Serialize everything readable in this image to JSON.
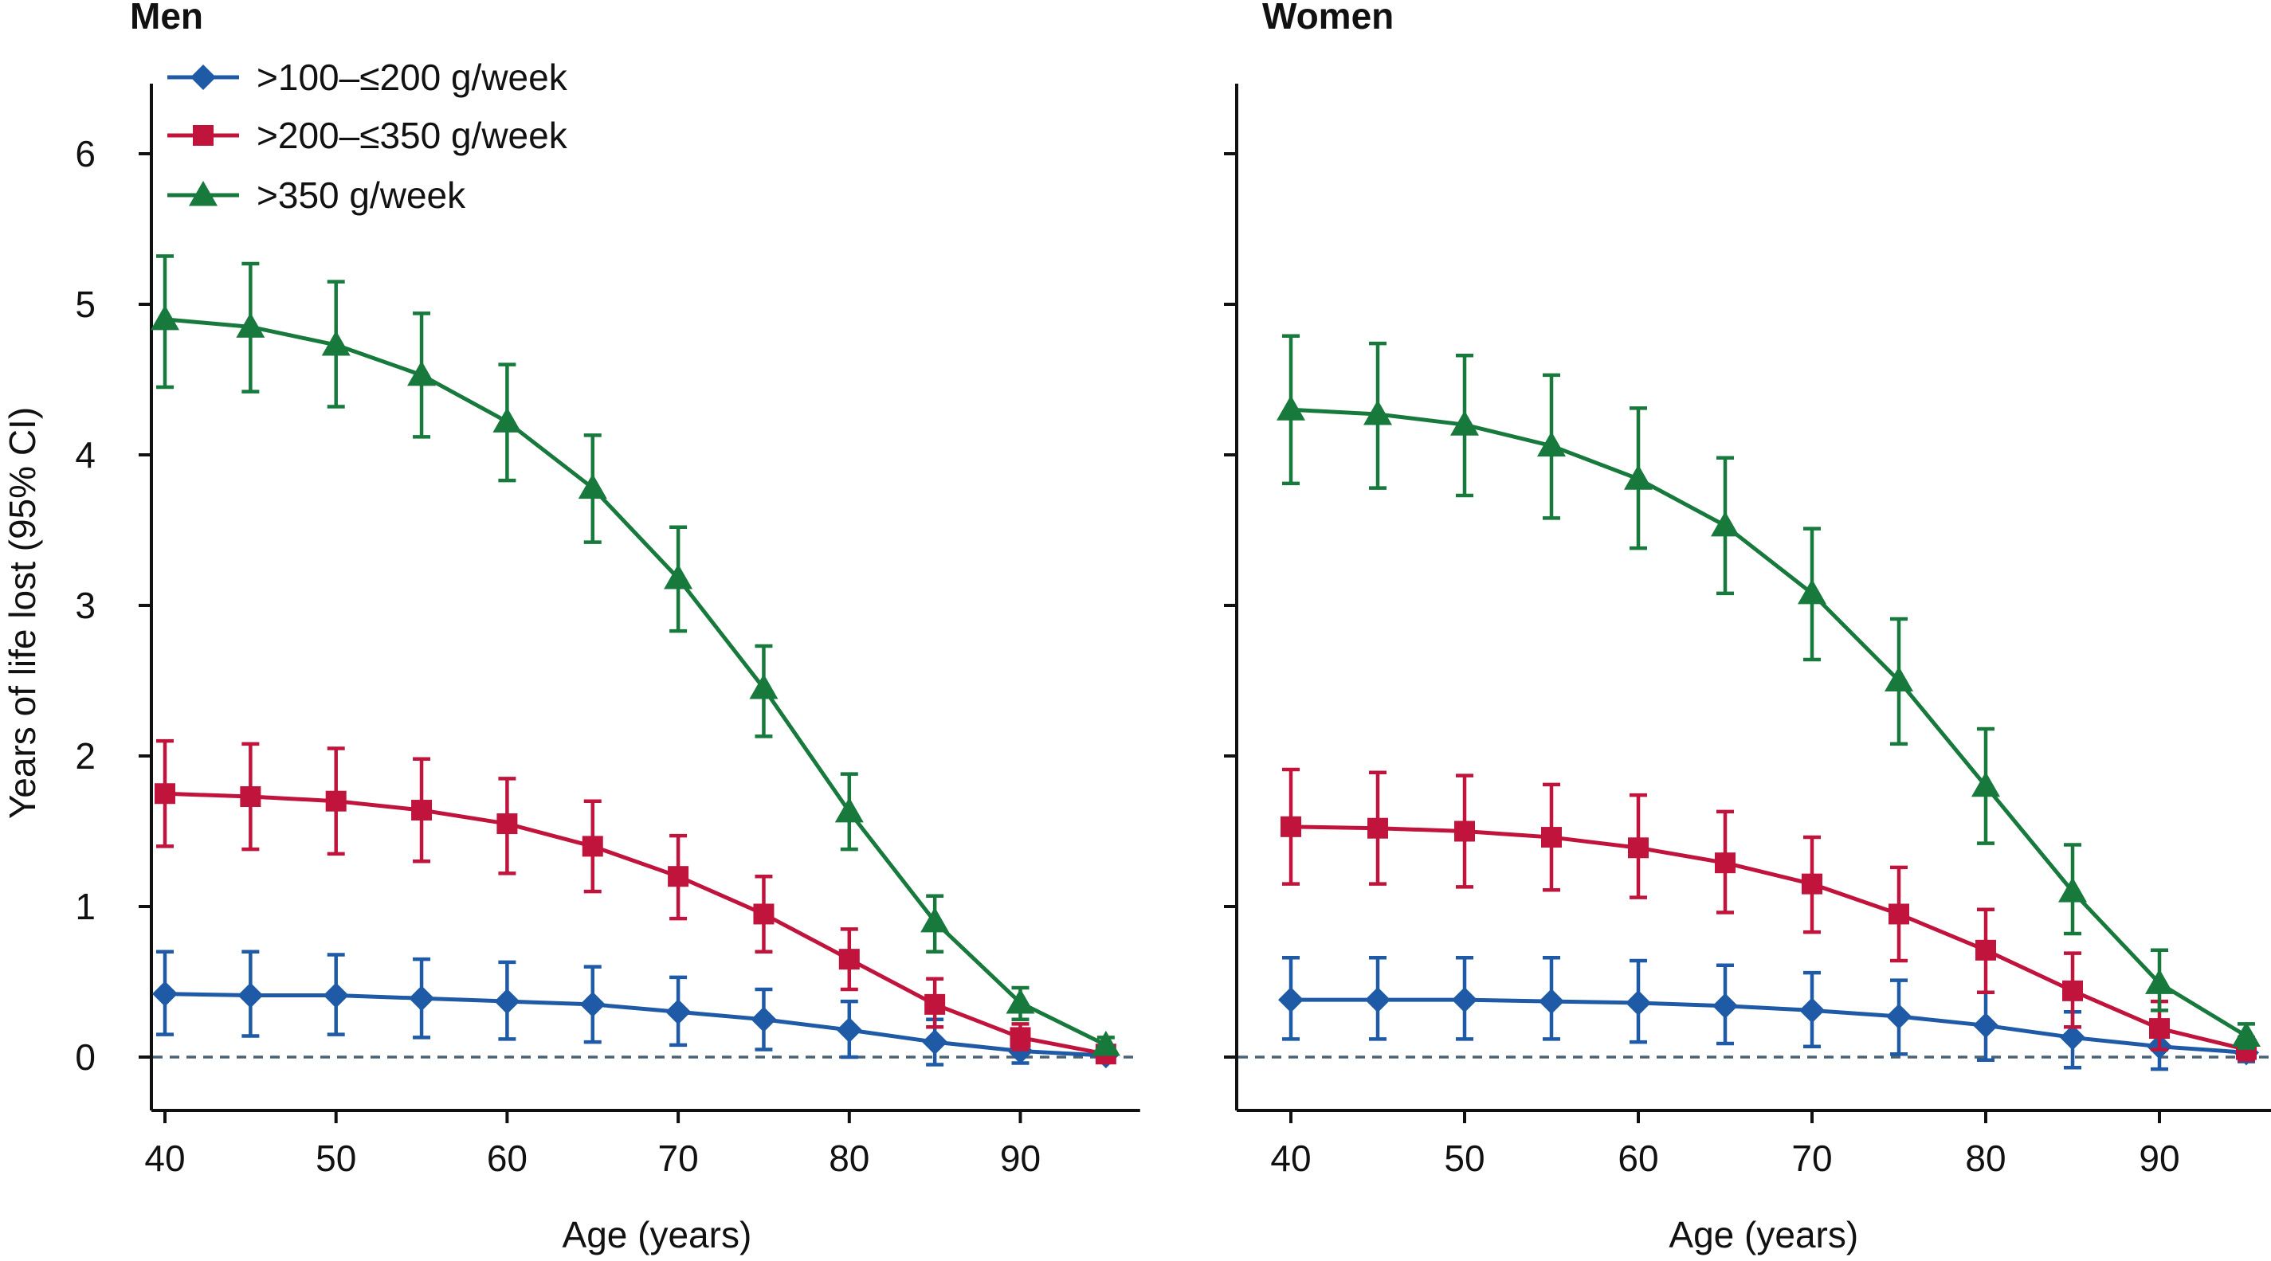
{
  "chart_data": [
    {
      "type": "line",
      "title": "Men",
      "xlabel": "Age (years)",
      "ylabel": "Years of life lost (95% CI)",
      "xlim": [
        38,
        97
      ],
      "ylim": [
        -0.3,
        6.5
      ],
      "xticks": [
        40,
        50,
        60,
        70,
        80,
        90
      ],
      "yticks": [
        0,
        1,
        2,
        3,
        4,
        5,
        6
      ],
      "reference_line_y": 0,
      "legend_position": "top-left",
      "x": [
        40,
        45,
        50,
        55,
        60,
        65,
        70,
        75,
        80,
        85,
        90,
        95
      ],
      "series": [
        {
          "name": ">100–≤200 g/week",
          "color": "#1f5aa6",
          "marker": "diamond",
          "values": [
            0.42,
            0.41,
            0.41,
            0.39,
            0.37,
            0.35,
            0.3,
            0.25,
            0.18,
            0.1,
            0.04,
            0.01
          ],
          "ci_low": [
            0.15,
            0.14,
            0.15,
            0.13,
            0.12,
            0.1,
            0.08,
            0.05,
            0.0,
            -0.05,
            -0.04,
            -0.03
          ],
          "ci_high": [
            0.7,
            0.7,
            0.68,
            0.65,
            0.63,
            0.6,
            0.53,
            0.45,
            0.37,
            0.25,
            0.12,
            0.05
          ]
        },
        {
          "name": ">200–≤350 g/week",
          "color": "#c0143c",
          "marker": "square",
          "values": [
            1.75,
            1.73,
            1.7,
            1.64,
            1.55,
            1.4,
            1.2,
            0.95,
            0.65,
            0.35,
            0.13,
            0.02
          ],
          "ci_low": [
            1.4,
            1.38,
            1.35,
            1.3,
            1.22,
            1.1,
            0.92,
            0.7,
            0.45,
            0.2,
            0.05,
            -0.02
          ],
          "ci_high": [
            2.1,
            2.08,
            2.05,
            1.98,
            1.85,
            1.7,
            1.47,
            1.2,
            0.85,
            0.52,
            0.22,
            0.06
          ]
        },
        {
          "name": ">350 g/week",
          "color": "#177a3c",
          "marker": "triangle",
          "values": [
            4.9,
            4.85,
            4.73,
            4.53,
            4.22,
            3.78,
            3.18,
            2.45,
            1.63,
            0.9,
            0.36,
            0.08
          ],
          "ci_low": [
            4.45,
            4.42,
            4.32,
            4.12,
            3.83,
            3.42,
            2.83,
            2.13,
            1.38,
            0.7,
            0.25,
            0.02
          ],
          "ci_high": [
            5.32,
            5.27,
            5.15,
            4.94,
            4.6,
            4.13,
            3.52,
            2.73,
            1.88,
            1.07,
            0.46,
            0.13
          ]
        }
      ]
    },
    {
      "type": "line",
      "title": "Women",
      "xlabel": "Age (years)",
      "ylabel": "",
      "xlim": [
        38,
        97
      ],
      "ylim": [
        -0.3,
        6.5
      ],
      "xticks": [
        40,
        50,
        60,
        70,
        80,
        90
      ],
      "yticks": [
        0,
        1,
        2,
        3,
        4,
        5,
        6
      ],
      "reference_line_y": 0,
      "x": [
        40,
        45,
        50,
        55,
        60,
        65,
        70,
        75,
        80,
        85,
        90,
        95
      ],
      "series": [
        {
          "name": ">100–≤200 g/week",
          "color": "#1f5aa6",
          "marker": "diamond",
          "values": [
            0.38,
            0.38,
            0.38,
            0.37,
            0.36,
            0.34,
            0.31,
            0.27,
            0.21,
            0.13,
            0.07,
            0.03
          ],
          "ci_low": [
            0.12,
            0.12,
            0.12,
            0.12,
            0.1,
            0.09,
            0.07,
            0.02,
            -0.02,
            -0.07,
            -0.08,
            -0.03
          ],
          "ci_high": [
            0.66,
            0.66,
            0.66,
            0.66,
            0.64,
            0.61,
            0.56,
            0.51,
            0.43,
            0.3,
            0.2,
            0.08
          ]
        },
        {
          "name": ">200–≤350 g/week",
          "color": "#c0143c",
          "marker": "square",
          "values": [
            1.53,
            1.52,
            1.5,
            1.46,
            1.39,
            1.29,
            1.15,
            0.95,
            0.71,
            0.44,
            0.19,
            0.05
          ],
          "ci_low": [
            1.15,
            1.15,
            1.13,
            1.11,
            1.06,
            0.96,
            0.83,
            0.64,
            0.43,
            0.2,
            0.05,
            -0.02
          ],
          "ci_high": [
            1.91,
            1.89,
            1.87,
            1.81,
            1.74,
            1.63,
            1.46,
            1.26,
            0.98,
            0.69,
            0.37,
            0.13
          ]
        },
        {
          "name": ">350 g/week",
          "color": "#177a3c",
          "marker": "triangle",
          "values": [
            4.3,
            4.27,
            4.2,
            4.06,
            3.84,
            3.53,
            3.08,
            2.5,
            1.8,
            1.1,
            0.49,
            0.14
          ],
          "ci_low": [
            3.81,
            3.78,
            3.73,
            3.58,
            3.38,
            3.08,
            2.64,
            2.08,
            1.42,
            0.82,
            0.31,
            0.06
          ],
          "ci_high": [
            4.79,
            4.74,
            4.66,
            4.53,
            4.31,
            3.98,
            3.51,
            2.91,
            2.18,
            1.41,
            0.71,
            0.22
          ]
        }
      ]
    }
  ]
}
